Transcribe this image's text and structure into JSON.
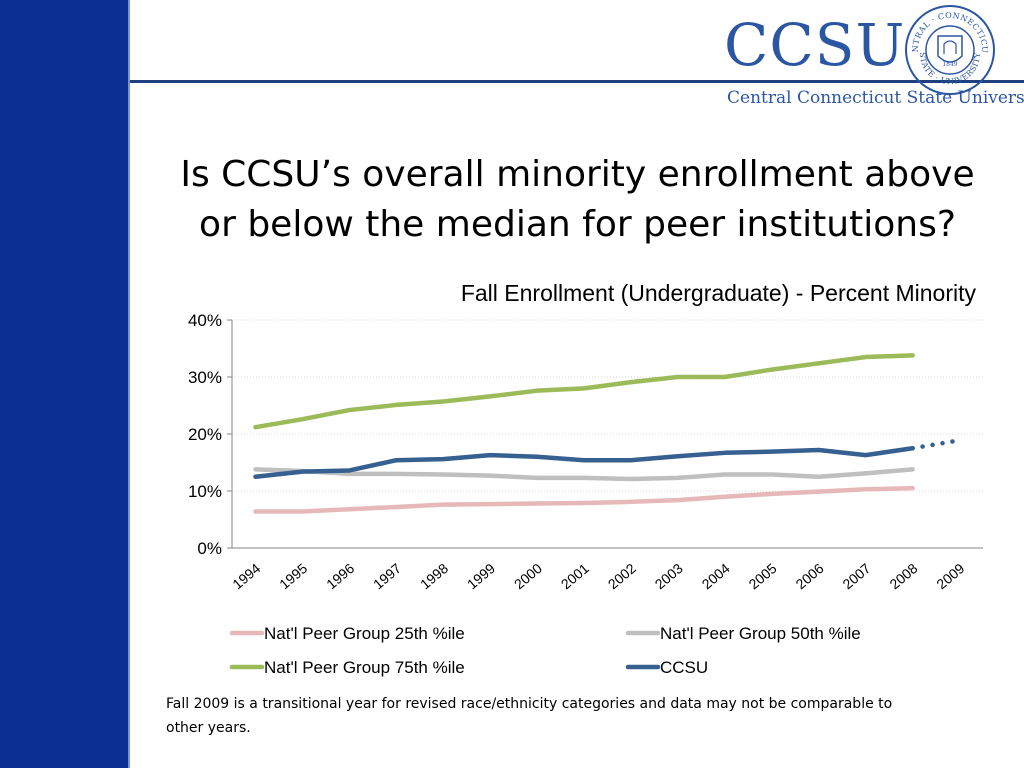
{
  "logo": {
    "wordmark": "CCSU",
    "subtitle": "Central Connecticut State University",
    "seal_text_top": "CENTRAL · CONNECTICUT ·",
    "seal_text_bottom": "STATE · UNIVERSITY",
    "seal_year": "1849"
  },
  "slide": {
    "title_line1": "Is CCSU’s overall minority enrollment above",
    "title_line2": "or below the median for peer institutions?",
    "footnote": "Fall 2009 is a transitional year for revised race/ethnicity categories and data may not be comparable to other years."
  },
  "colors": {
    "sidebar": "#0b2f93",
    "brand_blue": "#2b56a4",
    "p25": "#e6b9b8",
    "p50": "#bfbfbf",
    "p75": "#9bbb59",
    "ccsu": "#36608f"
  },
  "chart_data": {
    "type": "line",
    "title": "Fall Enrollment (Undergraduate) - Percent Minority",
    "xlabel": "",
    "ylabel": "",
    "categories": [
      "1994",
      "1995",
      "1996",
      "1997",
      "1998",
      "1999",
      "2000",
      "2001",
      "2002",
      "2003",
      "2004",
      "2005",
      "2006",
      "2007",
      "2008",
      "2009"
    ],
    "ylim": [
      0,
      0.4
    ],
    "yticks": [
      "0%",
      "10%",
      "20%",
      "30%",
      "40%"
    ],
    "grid": true,
    "legend_position": "bottom",
    "series": [
      {
        "name": "Nat'l Peer Group 25th %ile",
        "color": "#e6b9b8",
        "values": [
          0.064,
          0.064,
          0.068,
          0.072,
          0.076,
          0.077,
          0.078,
          0.079,
          0.081,
          0.084,
          0.09,
          0.095,
          0.099,
          0.103,
          0.105,
          null
        ]
      },
      {
        "name": "Nat'l Peer Group 50th %ile",
        "color": "#bfbfbf",
        "values": [
          0.138,
          0.135,
          0.13,
          0.13,
          0.129,
          0.127,
          0.123,
          0.123,
          0.121,
          0.123,
          0.129,
          0.129,
          0.125,
          0.131,
          0.138,
          null
        ]
      },
      {
        "name": "Nat'l Peer Group 75th %ile",
        "color": "#9bbb59",
        "values": [
          0.212,
          0.226,
          0.242,
          0.251,
          0.257,
          0.266,
          0.276,
          0.28,
          0.291,
          0.3,
          0.3,
          0.313,
          0.324,
          0.335,
          0.338,
          null
        ]
      },
      {
        "name": "CCSU",
        "color": "#36608f",
        "values": [
          0.125,
          0.134,
          0.136,
          0.154,
          0.156,
          0.163,
          0.16,
          0.154,
          0.154,
          0.161,
          0.167,
          0.169,
          0.172,
          0.163,
          0.175,
          0.189
        ],
        "dotted_from_index": 14
      }
    ]
  }
}
